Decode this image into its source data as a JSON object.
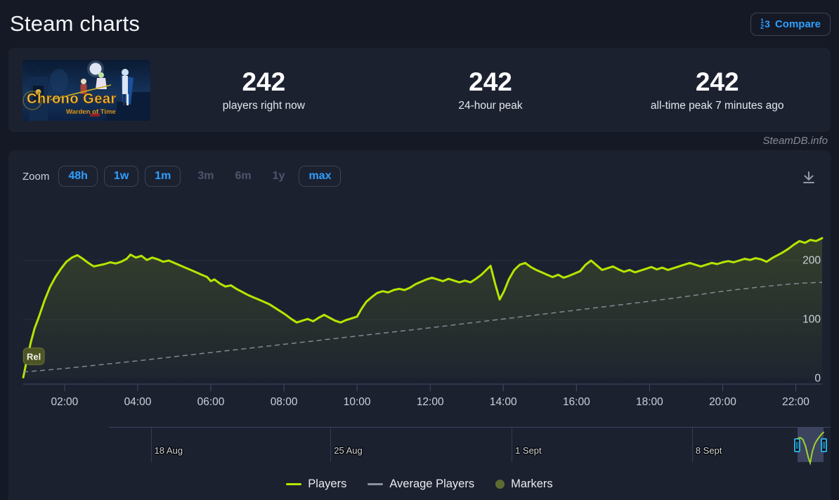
{
  "header": {
    "title": "Steam charts",
    "compare": {
      "label": "Compare",
      "icon_digits": [
        "1",
        "2",
        "3"
      ]
    }
  },
  "capsule": {
    "title": "Chrono Gear",
    "subtitle": "Warden of Time"
  },
  "stats": {
    "items": [
      {
        "value": "242",
        "label": "players right now"
      },
      {
        "value": "242",
        "label": "24-hour peak"
      },
      {
        "value": "242",
        "label": "all-time peak 7 minutes ago"
      }
    ]
  },
  "watermark": "SteamDB.info",
  "toolbar": {
    "zoom_label": "Zoom",
    "buttons": [
      {
        "label": "48h",
        "style": "bordered"
      },
      {
        "label": "1w",
        "style": "bordered"
      },
      {
        "label": "1m",
        "style": "bordered"
      },
      {
        "label": "3m",
        "style": "disabled"
      },
      {
        "label": "6m",
        "style": "disabled"
      },
      {
        "label": "1y",
        "style": "disabled"
      },
      {
        "label": "max",
        "style": "bordered"
      }
    ]
  },
  "chart_data": {
    "type": "line",
    "xlabel": "time of day",
    "ylabel": "players",
    "xlim_hours": [
      0.868,
      22.72
    ],
    "ylim": [
      0,
      300
    ],
    "grid": "horizontal",
    "legend_position": "bottom-center",
    "x_ticks": [
      {
        "h": 2,
        "label": "02:00"
      },
      {
        "h": 4,
        "label": "04:00"
      },
      {
        "h": 6,
        "label": "06:00"
      },
      {
        "h": 8,
        "label": "08:00"
      },
      {
        "h": 10,
        "label": "10:00"
      },
      {
        "h": 12,
        "label": "12:00"
      },
      {
        "h": 14,
        "label": "14:00"
      },
      {
        "h": 16,
        "label": "16:00"
      },
      {
        "h": 18,
        "label": "18:00"
      },
      {
        "h": 20,
        "label": "20:00"
      },
      {
        "h": 22,
        "label": "22:00"
      }
    ],
    "y_ticks": [
      {
        "v": 0,
        "label": "0"
      },
      {
        "v": 100,
        "label": "100"
      },
      {
        "v": 200,
        "label": "200"
      }
    ],
    "series": [
      {
        "name": "Players",
        "color": "#b4e600",
        "dash": null,
        "points": [
          [
            0.87,
            2
          ],
          [
            0.98,
            35
          ],
          [
            1.08,
            62
          ],
          [
            1.18,
            85
          ],
          [
            1.3,
            105
          ],
          [
            1.45,
            132
          ],
          [
            1.6,
            155
          ],
          [
            1.75,
            172
          ],
          [
            1.9,
            186
          ],
          [
            2.05,
            198
          ],
          [
            2.2,
            205
          ],
          [
            2.35,
            209
          ],
          [
            2.5,
            203
          ],
          [
            2.65,
            196
          ],
          [
            2.8,
            190
          ],
          [
            2.95,
            192
          ],
          [
            3.1,
            194
          ],
          [
            3.25,
            197
          ],
          [
            3.4,
            195
          ],
          [
            3.55,
            198
          ],
          [
            3.7,
            203
          ],
          [
            3.8,
            210
          ],
          [
            3.95,
            205
          ],
          [
            4.1,
            208
          ],
          [
            4.25,
            201
          ],
          [
            4.4,
            205
          ],
          [
            4.55,
            202
          ],
          [
            4.7,
            198
          ],
          [
            4.85,
            200
          ],
          [
            5.0,
            196
          ],
          [
            5.15,
            192
          ],
          [
            5.3,
            188
          ],
          [
            5.45,
            184
          ],
          [
            5.6,
            180
          ],
          [
            5.75,
            176
          ],
          [
            5.9,
            172
          ],
          [
            6.0,
            165
          ],
          [
            6.1,
            168
          ],
          [
            6.25,
            161
          ],
          [
            6.4,
            156
          ],
          [
            6.55,
            158
          ],
          [
            6.7,
            152
          ],
          [
            6.85,
            147
          ],
          [
            7.0,
            142
          ],
          [
            7.15,
            138
          ],
          [
            7.3,
            134
          ],
          [
            7.45,
            130
          ],
          [
            7.6,
            126
          ],
          [
            7.75,
            120
          ],
          [
            7.9,
            114
          ],
          [
            8.05,
            108
          ],
          [
            8.2,
            101
          ],
          [
            8.35,
            95
          ],
          [
            8.5,
            98
          ],
          [
            8.65,
            101
          ],
          [
            8.8,
            97
          ],
          [
            8.95,
            103
          ],
          [
            9.1,
            108
          ],
          [
            9.25,
            103
          ],
          [
            9.4,
            98
          ],
          [
            9.55,
            95
          ],
          [
            9.7,
            99
          ],
          [
            9.85,
            102
          ],
          [
            10.0,
            105
          ],
          [
            10.12,
            118
          ],
          [
            10.25,
            130
          ],
          [
            10.4,
            138
          ],
          [
            10.55,
            145
          ],
          [
            10.7,
            148
          ],
          [
            10.85,
            146
          ],
          [
            11.0,
            150
          ],
          [
            11.15,
            152
          ],
          [
            11.3,
            150
          ],
          [
            11.45,
            154
          ],
          [
            11.6,
            160
          ],
          [
            11.75,
            164
          ],
          [
            11.9,
            168
          ],
          [
            12.05,
            171
          ],
          [
            12.2,
            168
          ],
          [
            12.35,
            165
          ],
          [
            12.5,
            169
          ],
          [
            12.65,
            166
          ],
          [
            12.8,
            163
          ],
          [
            12.95,
            166
          ],
          [
            13.1,
            163
          ],
          [
            13.25,
            169
          ],
          [
            13.4,
            176
          ],
          [
            13.55,
            185
          ],
          [
            13.65,
            191
          ],
          [
            13.78,
            160
          ],
          [
            13.9,
            134
          ],
          [
            14.02,
            148
          ],
          [
            14.15,
            168
          ],
          [
            14.3,
            184
          ],
          [
            14.45,
            193
          ],
          [
            14.6,
            196
          ],
          [
            14.75,
            189
          ],
          [
            14.9,
            184
          ],
          [
            15.05,
            180
          ],
          [
            15.2,
            176
          ],
          [
            15.35,
            172
          ],
          [
            15.5,
            176
          ],
          [
            15.65,
            171
          ],
          [
            15.8,
            174
          ],
          [
            15.95,
            178
          ],
          [
            16.1,
            182
          ],
          [
            16.25,
            193
          ],
          [
            16.4,
            200
          ],
          [
            16.55,
            192
          ],
          [
            16.7,
            184
          ],
          [
            16.85,
            187
          ],
          [
            17.0,
            190
          ],
          [
            17.15,
            185
          ],
          [
            17.3,
            181
          ],
          [
            17.45,
            184
          ],
          [
            17.6,
            180
          ],
          [
            17.75,
            183
          ],
          [
            17.9,
            186
          ],
          [
            18.05,
            189
          ],
          [
            18.2,
            185
          ],
          [
            18.35,
            188
          ],
          [
            18.5,
            184
          ],
          [
            18.65,
            187
          ],
          [
            18.8,
            190
          ],
          [
            18.95,
            193
          ],
          [
            19.1,
            196
          ],
          [
            19.25,
            193
          ],
          [
            19.4,
            190
          ],
          [
            19.55,
            193
          ],
          [
            19.7,
            196
          ],
          [
            19.85,
            194
          ],
          [
            20.0,
            197
          ],
          [
            20.15,
            199
          ],
          [
            20.3,
            197
          ],
          [
            20.45,
            200
          ],
          [
            20.6,
            203
          ],
          [
            20.75,
            201
          ],
          [
            20.9,
            204
          ],
          [
            21.05,
            202
          ],
          [
            21.2,
            198
          ],
          [
            21.35,
            204
          ],
          [
            21.5,
            209
          ],
          [
            21.65,
            214
          ],
          [
            21.8,
            220
          ],
          [
            21.95,
            227
          ],
          [
            22.1,
            233
          ],
          [
            22.25,
            230
          ],
          [
            22.4,
            235
          ],
          [
            22.55,
            233
          ],
          [
            22.72,
            238
          ]
        ]
      },
      {
        "name": "Average Players",
        "color": "#8d939c",
        "dash": "7 5",
        "points": [
          [
            0.87,
            11
          ],
          [
            2,
            17
          ],
          [
            4,
            30
          ],
          [
            6,
            44
          ],
          [
            8,
            58
          ],
          [
            10,
            72
          ],
          [
            12,
            86
          ],
          [
            14,
            101
          ],
          [
            16,
            116
          ],
          [
            18,
            131
          ],
          [
            19,
            139
          ],
          [
            20,
            148
          ],
          [
            21,
            155
          ],
          [
            21.8,
            160
          ],
          [
            22.3,
            162
          ],
          [
            22.72,
            163
          ]
        ]
      }
    ],
    "flags": [
      {
        "label": "Rel",
        "h": 0.87,
        "v": 2
      }
    ],
    "legend": [
      {
        "label": "Players",
        "swatch": "line",
        "color": "#b4e600"
      },
      {
        "label": "Average Players",
        "swatch": "line",
        "color": "#8d939c"
      },
      {
        "label": "Markers",
        "swatch": "circle",
        "color": "#5d6c31"
      }
    ]
  },
  "navigator": {
    "date_ticks": [
      {
        "pos": 0.058,
        "label": "18 Aug"
      },
      {
        "pos": 0.307,
        "label": "25 Aug"
      },
      {
        "pos": 0.558,
        "label": "1 Sept"
      },
      {
        "pos": 0.808,
        "label": "8 Sept"
      }
    ],
    "selection": {
      "from": 0.954,
      "to": 0.9905,
      "color": "#9fd32f"
    },
    "mini_points": [
      [
        0,
        0.28
      ],
      [
        0.1,
        0.24
      ],
      [
        0.2,
        0.3
      ],
      [
        0.3,
        0.52
      ],
      [
        0.42,
        0.95
      ],
      [
        0.48,
        1.1
      ],
      [
        0.56,
        0.72
      ],
      [
        0.66,
        0.45
      ],
      [
        0.76,
        0.3
      ],
      [
        0.86,
        0.18
      ],
      [
        0.94,
        0.1
      ],
      [
        1,
        0.05
      ]
    ]
  }
}
